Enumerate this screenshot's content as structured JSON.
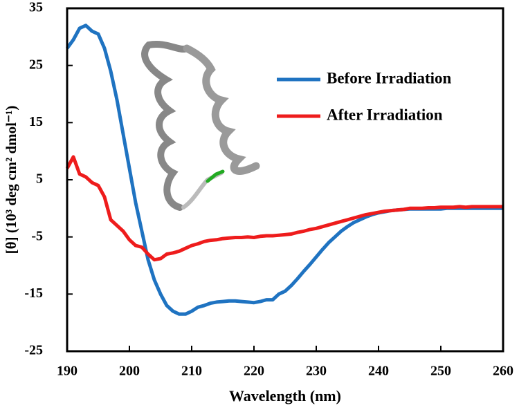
{
  "chart_data": {
    "type": "line",
    "xlabel": "Wavelength (nm)",
    "ylabel": "[θ] (10³ deg cm² dmol⁻¹)",
    "x": [
      190,
      191,
      192,
      193,
      194,
      195,
      196,
      197,
      198,
      199,
      200,
      201,
      202,
      203,
      204,
      205,
      206,
      207,
      208,
      209,
      210,
      211,
      212,
      213,
      214,
      215,
      216,
      217,
      218,
      219,
      220,
      221,
      222,
      223,
      224,
      225,
      226,
      227,
      228,
      229,
      230,
      231,
      232,
      233,
      234,
      235,
      236,
      237,
      238,
      239,
      240,
      241,
      242,
      243,
      244,
      245,
      246,
      247,
      248,
      249,
      250,
      251,
      252,
      253,
      254,
      255,
      256,
      257,
      258,
      259,
      260
    ],
    "series": [
      {
        "name": "Before Irradiation",
        "color": "#1f73c1",
        "values": [
          28,
          29.5,
          31.5,
          32,
          31,
          30.5,
          28,
          24,
          19,
          13,
          7,
          1,
          -4,
          -9,
          -12.5,
          -15,
          -17,
          -18,
          -18.5,
          -18.5,
          -18,
          -17.3,
          -17,
          -16.6,
          -16.4,
          -16.3,
          -16.2,
          -16.2,
          -16.3,
          -16.4,
          -16.5,
          -16.3,
          -16,
          -16,
          -15,
          -14.5,
          -13.5,
          -12.3,
          -11,
          -9.8,
          -8.5,
          -7.2,
          -6,
          -5,
          -4,
          -3.2,
          -2.5,
          -2,
          -1.5,
          -1.1,
          -0.8,
          -0.6,
          -0.4,
          -0.3,
          -0.2,
          -0.1,
          -0.1,
          -0.1,
          -0.1,
          -0.1,
          -0.1,
          0,
          0,
          0,
          0,
          0,
          0,
          0,
          0,
          0,
          0
        ]
      },
      {
        "name": "After Irradiation",
        "color": "#ee1c1c",
        "values": [
          7,
          9,
          6,
          5.5,
          4.5,
          4,
          2,
          -2,
          -3,
          -4,
          -5.5,
          -6.5,
          -6.8,
          -8,
          -9,
          -8.8,
          -8,
          -7.8,
          -7.5,
          -7,
          -6.5,
          -6.2,
          -5.8,
          -5.6,
          -5.5,
          -5.3,
          -5.2,
          -5.1,
          -5.1,
          -5,
          -5.1,
          -4.9,
          -4.8,
          -4.8,
          -4.7,
          -4.6,
          -4.5,
          -4.2,
          -4,
          -3.7,
          -3.5,
          -3.2,
          -2.9,
          -2.6,
          -2.3,
          -2,
          -1.7,
          -1.4,
          -1.1,
          -0.9,
          -0.7,
          -0.5,
          -0.4,
          -0.3,
          -0.2,
          0,
          0,
          0,
          0.1,
          0.1,
          0.2,
          0.2,
          0.2,
          0.3,
          0.2,
          0.3,
          0.3,
          0.3,
          0.3,
          0.3,
          0.3
        ]
      }
    ],
    "xlim": [
      190,
      260
    ],
    "xticks": [
      190,
      200,
      210,
      220,
      230,
      240,
      250,
      260
    ],
    "ylim": [
      -25,
      35
    ],
    "yticks": [
      -25,
      -15,
      -5,
      5,
      15,
      25,
      35
    ]
  }
}
